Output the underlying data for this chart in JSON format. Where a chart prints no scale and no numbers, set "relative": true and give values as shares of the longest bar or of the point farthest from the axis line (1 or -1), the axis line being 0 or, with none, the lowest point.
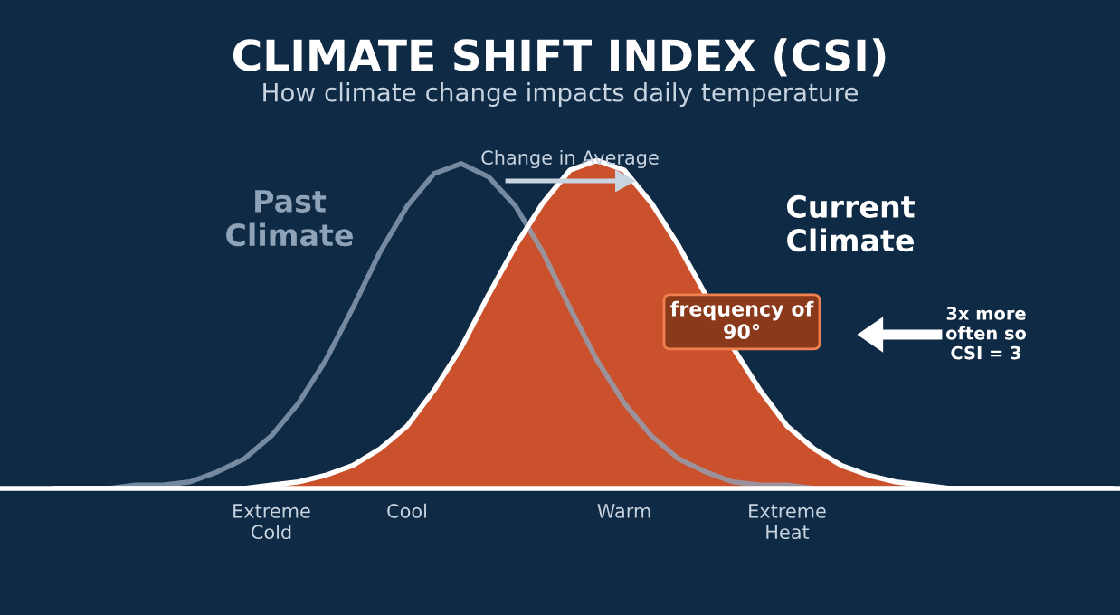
{
  "chart_data": {
    "type": "line",
    "title": "CLIMATE SHIFT INDEX (CSI)",
    "subtitle": "How climate change impacts daily temperature",
    "relative": true,
    "categories": [
      null,
      null,
      null,
      null,
      null,
      null,
      null,
      null,
      "Extreme\nCold",
      null,
      null,
      null,
      null,
      "Cool",
      null,
      null,
      null,
      null,
      null,
      null,
      null,
      "Warm",
      null,
      null,
      null,
      null,
      null,
      "Extreme\nHeat",
      null,
      null,
      null,
      null,
      null,
      null,
      null,
      null,
      null,
      null,
      null,
      null
    ],
    "series": [
      {
        "name": "Past\nClimate",
        "color": "#8fa3b8",
        "values": [
          0,
          0,
          0,
          0.01,
          0.01,
          0.02,
          0.05,
          0.09,
          0.16,
          0.26,
          0.39,
          0.55,
          0.72,
          0.86,
          0.96,
          0.99,
          0.95,
          0.86,
          0.72,
          0.55,
          0.39,
          0.26,
          0.16,
          0.09,
          0.05,
          0.02,
          0.01,
          0.01,
          0,
          0,
          0,
          0,
          0,
          0,
          0,
          0,
          0,
          0,
          0,
          0
        ]
      },
      {
        "name": "Current\nClimate",
        "type": "area",
        "color": "#e0552b",
        "values": [
          0,
          0,
          0,
          0,
          0,
          0,
          0,
          0,
          0.01,
          0.02,
          0.04,
          0.07,
          0.12,
          0.19,
          0.3,
          0.43,
          0.59,
          0.74,
          0.87,
          0.97,
          1.0,
          0.97,
          0.87,
          0.74,
          0.59,
          0.43,
          0.3,
          0.19,
          0.12,
          0.07,
          0.04,
          0.02,
          0.01,
          0,
          0,
          0,
          0,
          0,
          0,
          0
        ]
      }
    ],
    "annotations": [
      "Change in Average",
      "frequency of\n90°",
      "3x more\noften so\nCSI = 3"
    ]
  }
}
